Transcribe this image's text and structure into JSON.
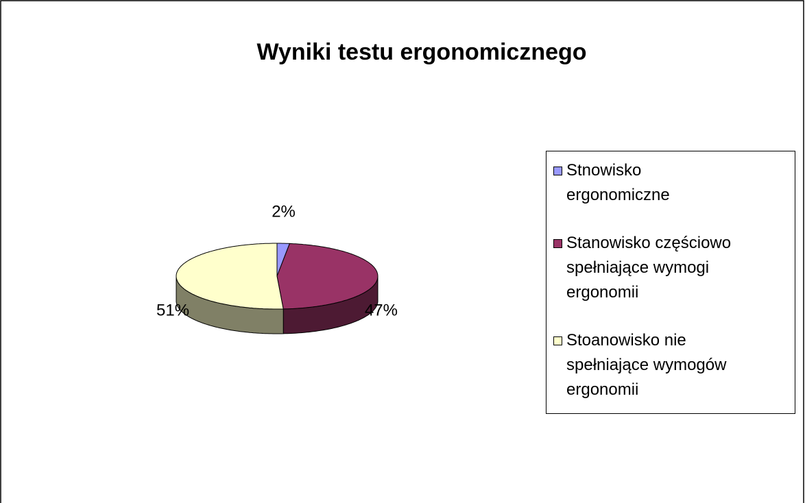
{
  "chart_data": {
    "type": "pie",
    "title": "Wyniki testu ergonomicznego",
    "categories": [
      "Stnowisko ergonomiczne",
      "Stanowisko częściowo spełniające wymogi ergonomii",
      "Stoanowisko nie spełniające wymogów ergonomii"
    ],
    "values": [
      2,
      47,
      51
    ],
    "value_labels": [
      "2%",
      "47%",
      "51%"
    ],
    "colors": [
      "#9999ff",
      "#993366",
      "#ffffcc"
    ],
    "legend": "right"
  }
}
